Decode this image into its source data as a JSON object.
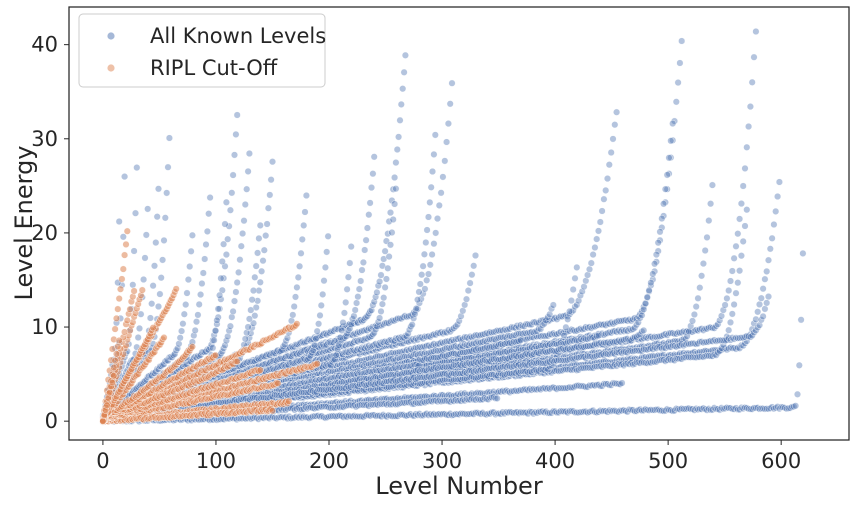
{
  "chart_data": {
    "type": "scatter",
    "title": "",
    "xlabel": "Level Number",
    "ylabel": "Level Energy",
    "xlim": [
      -30,
      660
    ],
    "ylim": [
      -2,
      44
    ],
    "xticks": [
      0,
      100,
      200,
      300,
      400,
      500,
      600
    ],
    "yticks": [
      0,
      10,
      20,
      30,
      40
    ],
    "grid": false,
    "legend_position": "top-left",
    "series": [
      {
        "name": "All Known Levels",
        "color": "#4c72b0",
        "curves": [
          {
            "n": 620,
            "e0": 0.0,
            "slope": 0.0024,
            "tail": 8,
            "tail_to": 22.0
          },
          {
            "n": 600,
            "e0": 0.5,
            "slope": 0.013,
            "tail": 40,
            "tail_to": 27.0
          },
          {
            "n": 578,
            "e0": 0.2,
            "slope": 0.018,
            "tail": 40,
            "tail_to": 42.0
          },
          {
            "n": 570,
            "e0": 0.5,
            "slope": 0.012,
            "tail": 30,
            "tail_to": 23.0
          },
          {
            "n": 540,
            "e0": 0.3,
            "slope": 0.016,
            "tail": 30,
            "tail_to": 26.0
          },
          {
            "n": 513,
            "e0": 0.5,
            "slope": 0.022,
            "tail": 45,
            "tail_to": 42.0
          },
          {
            "n": 505,
            "e0": 0.4,
            "slope": 0.02,
            "tail": 40,
            "tail_to": 33.0
          },
          {
            "n": 455,
            "e0": 0.5,
            "slope": 0.026,
            "tail": 50,
            "tail_to": 33.5
          },
          {
            "n": 460,
            "e0": 0.3,
            "slope": 0.008,
            "tail": 0,
            "tail_to": 4.0
          },
          {
            "n": 420,
            "e0": 0.4,
            "slope": 0.013,
            "tail": 30,
            "tail_to": 17.0
          },
          {
            "n": 440,
            "e0": 0.5,
            "slope": 0.019,
            "tail": 0,
            "tail_to": 9.0
          },
          {
            "n": 400,
            "e0": 0.4,
            "slope": 0.024,
            "tail": 20,
            "tail_to": 13.0
          },
          {
            "n": 350,
            "e0": 0.3,
            "slope": 0.006,
            "tail": 0,
            "tail_to": 2.5
          },
          {
            "n": 330,
            "e0": 0.4,
            "slope": 0.03,
            "tail": 25,
            "tail_to": 18.0
          },
          {
            "n": 310,
            "e0": 0.4,
            "slope": 0.04,
            "tail": 40,
            "tail_to": 37.5
          },
          {
            "n": 295,
            "e0": 0.4,
            "slope": 0.032,
            "tail": 30,
            "tail_to": 32.0
          },
          {
            "n": 268,
            "e0": 0.4,
            "slope": 0.045,
            "tail": 40,
            "tail_to": 39.5
          },
          {
            "n": 260,
            "e0": 0.4,
            "slope": 0.036,
            "tail": 25,
            "tail_to": 26.0
          },
          {
            "n": 240,
            "e0": 0.3,
            "slope": 0.04,
            "tail": 30,
            "tail_to": 28.0
          },
          {
            "n": 220,
            "e0": 0.4,
            "slope": 0.028,
            "tail": 20,
            "tail_to": 19.0
          },
          {
            "n": 200,
            "e0": 0.3,
            "slope": 0.035,
            "tail": 20,
            "tail_to": 21.0
          },
          {
            "n": 180,
            "e0": 0.3,
            "slope": 0.046,
            "tail": 25,
            "tail_to": 24.0
          },
          {
            "n": 150,
            "e0": 0.2,
            "slope": 0.058,
            "tail": 30,
            "tail_to": 27.5
          },
          {
            "n": 140,
            "e0": 0.3,
            "slope": 0.05,
            "tail": 25,
            "tail_to": 22.0
          },
          {
            "n": 130,
            "e0": 0.3,
            "slope": 0.065,
            "tail": 30,
            "tail_to": 29.0
          },
          {
            "n": 120,
            "e0": 0.2,
            "slope": 0.08,
            "tail": 30,
            "tail_to": 35.0
          },
          {
            "n": 110,
            "e0": 0.3,
            "slope": 0.06,
            "tail": 20,
            "tail_to": 25.0
          },
          {
            "n": 95,
            "e0": 0.2,
            "slope": 0.09,
            "tail": 25,
            "tail_to": 24.0
          },
          {
            "n": 80,
            "e0": 0.2,
            "slope": 0.11,
            "tail": 20,
            "tail_to": 21.0
          },
          {
            "n": 60,
            "e0": 0.2,
            "slope": 0.18,
            "tail": 20,
            "tail_to": 33.5
          },
          {
            "n": 50,
            "e0": 0.2,
            "slope": 0.2,
            "tail": 15,
            "tail_to": 27.0
          },
          {
            "n": 40,
            "e0": 0.1,
            "slope": 0.25,
            "tail": 15,
            "tail_to": 23.5
          },
          {
            "n": 30,
            "e0": 0.1,
            "slope": 0.35,
            "tail": 10,
            "tail_to": 27.0
          },
          {
            "n": 20,
            "e0": 0.0,
            "slope": 0.55,
            "tail": 8,
            "tail_to": 31.0
          },
          {
            "n": 15,
            "e0": 0.0,
            "slope": 0.7,
            "tail": 6,
            "tail_to": 25.0
          },
          {
            "n": 370,
            "e0": 0.3,
            "slope": 0.022,
            "tail": 0,
            "tail_to": 8.5
          },
          {
            "n": 390,
            "e0": 0.3,
            "slope": 0.017,
            "tail": 0,
            "tail_to": 6.5
          },
          {
            "n": 280,
            "e0": 0.3,
            "slope": 0.021,
            "tail": 0,
            "tail_to": 6.0
          },
          {
            "n": 480,
            "e0": 0.3,
            "slope": 0.018,
            "tail": 15,
            "tail_to": 10.0
          },
          {
            "n": 590,
            "e0": 0.4,
            "slope": 0.015,
            "tail": 20,
            "tail_to": 14.0
          }
        ]
      },
      {
        "name": "RIPL Cut-Off",
        "color": "#dd8452",
        "curves": [
          {
            "n": 190,
            "e0": 0.0,
            "slope": 0.032,
            "tail": 0,
            "tail_to": 6.0
          },
          {
            "n": 172,
            "e0": 0.2,
            "slope": 0.058,
            "tail": 0,
            "tail_to": 10.3
          },
          {
            "n": 165,
            "e0": 0.1,
            "slope": 0.012,
            "tail": 0,
            "tail_to": 2.0
          },
          {
            "n": 155,
            "e0": 0.1,
            "slope": 0.025,
            "tail": 0,
            "tail_to": 4.0
          },
          {
            "n": 150,
            "e0": 0.0,
            "slope": 0.008,
            "tail": 0,
            "tail_to": 1.2
          },
          {
            "n": 140,
            "e0": 0.1,
            "slope": 0.038,
            "tail": 0,
            "tail_to": 5.5
          },
          {
            "n": 120,
            "e0": 0.1,
            "slope": 0.05,
            "tail": 0,
            "tail_to": 6.5
          },
          {
            "n": 100,
            "e0": 0.1,
            "slope": 0.07,
            "tail": 0,
            "tail_to": 7.0
          },
          {
            "n": 80,
            "e0": 0.1,
            "slope": 0.09,
            "tail": 0,
            "tail_to": 8.0
          },
          {
            "n": 65,
            "e0": 0.1,
            "slope": 0.21,
            "tail": 0,
            "tail_to": 14.0
          },
          {
            "n": 55,
            "e0": 0.1,
            "slope": 0.16,
            "tail": 0,
            "tail_to": 9.0
          },
          {
            "n": 45,
            "e0": 0.0,
            "slope": 0.22,
            "tail": 0,
            "tail_to": 10.0
          },
          {
            "n": 35,
            "e0": 0.0,
            "slope": 0.4,
            "tail": 0,
            "tail_to": 14.0
          },
          {
            "n": 28,
            "e0": 0.0,
            "slope": 0.5,
            "tail": 0,
            "tail_to": 14.0
          },
          {
            "n": 22,
            "e0": 0.0,
            "slope": 0.9,
            "tail": 0,
            "tail_to": 20.5
          },
          {
            "n": 15,
            "e0": 0.0,
            "slope": 0.6,
            "tail": 0,
            "tail_to": 9.0
          },
          {
            "n": 10,
            "e0": 0.0,
            "slope": 0.5,
            "tail": 0,
            "tail_to": 5.0
          }
        ]
      }
    ]
  }
}
